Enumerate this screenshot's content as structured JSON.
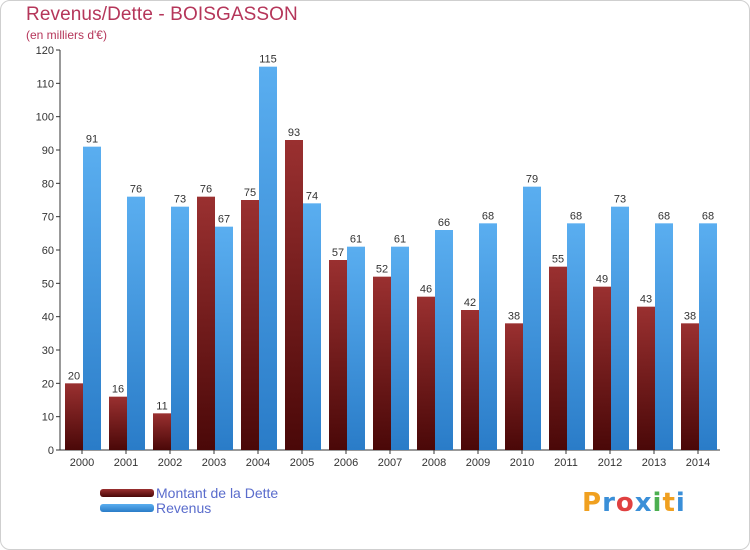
{
  "chart_data": {
    "type": "bar",
    "title": "Revenus/Dette - BOISGASSON",
    "subtitle": "(en milliers d'€)",
    "categories": [
      "2000",
      "2001",
      "2002",
      "2003",
      "2004",
      "2005",
      "2006",
      "2007",
      "2008",
      "2009",
      "2010",
      "2011",
      "2012",
      "2013",
      "2014"
    ],
    "series": [
      {
        "name": "Montant de la Dette",
        "color": "#7a1a1a",
        "values": [
          20,
          16,
          11,
          76,
          75,
          93,
          57,
          52,
          46,
          42,
          38,
          55,
          49,
          43,
          38
        ]
      },
      {
        "name": "Revenus",
        "color": "#3f9be0",
        "values": [
          91,
          76,
          73,
          67,
          115,
          74,
          61,
          61,
          66,
          68,
          79,
          68,
          73,
          68,
          68
        ]
      }
    ],
    "ylim": [
      0,
      120
    ],
    "yticks": [
      0,
      10,
      20,
      30,
      40,
      50,
      60,
      70,
      80,
      90,
      100,
      110,
      120
    ],
    "xlabel": "",
    "ylabel": "",
    "grid": false,
    "legend_position": "bottom-left"
  },
  "logo": {
    "letters": [
      "P",
      "r",
      "o",
      "x",
      "i",
      "t",
      "i"
    ],
    "colors": [
      "#f0a020",
      "#3a8fd8",
      "#e04040",
      "#3a8fd8",
      "#4caf50",
      "#f0a020",
      "#3a8fd8"
    ]
  }
}
